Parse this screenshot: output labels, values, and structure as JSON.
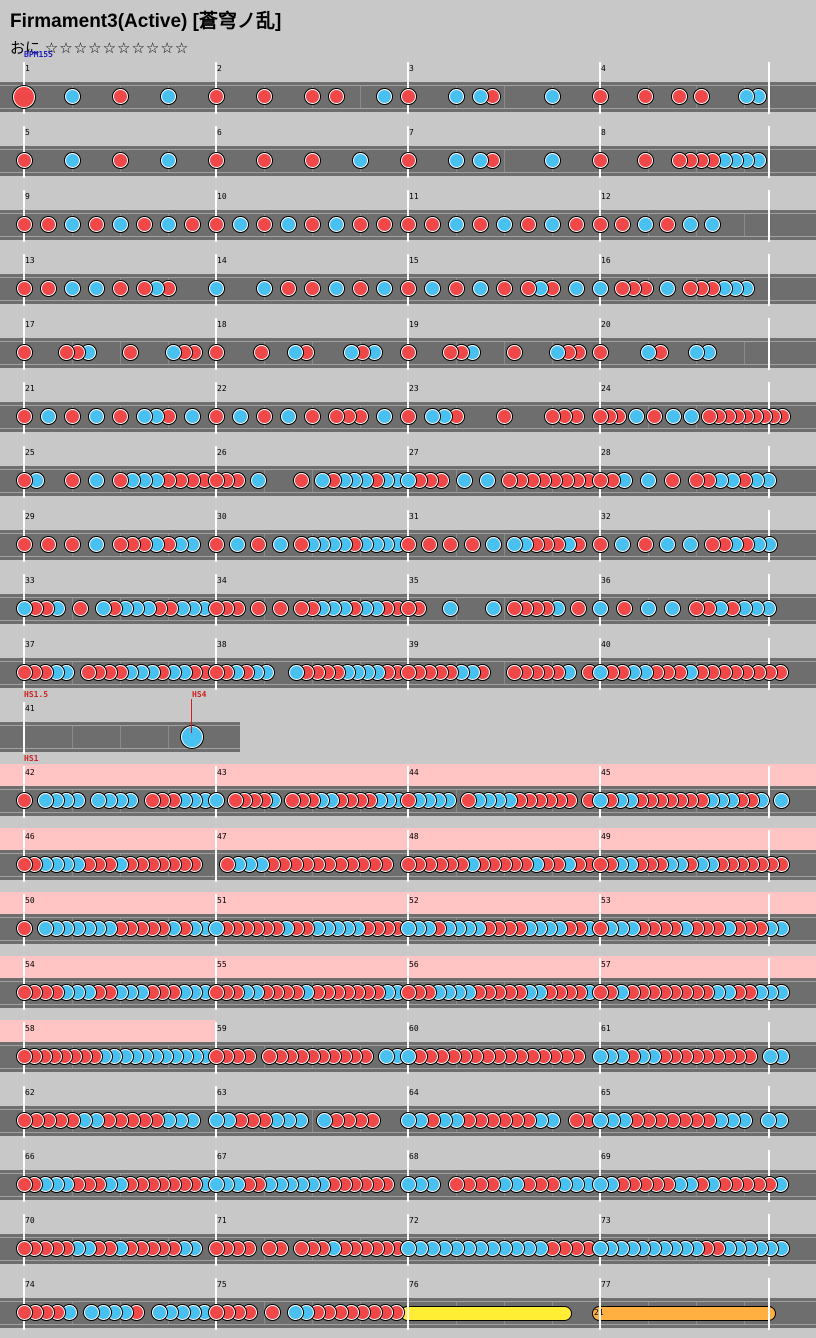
{
  "song": {
    "title": "Firmament3(Active)  [蒼穹ノ乱]",
    "difficulty_label": "おに",
    "stars": "☆☆☆☆☆☆☆☆☆☆"
  },
  "colors": {
    "don": "#f04848",
    "ka": "#48c0f0",
    "lane": "#6e6e6e",
    "gogo": "#ffc4c4",
    "drumroll": "#ffee33",
    "balloon": "#ffb040"
  },
  "rows": [
    {
      "bars": [
        "1",
        "2",
        "3",
        "4"
      ],
      "marks": [
        {
          "text": "BPM155",
          "color": "#2020c0",
          "bar": 0
        }
      ],
      "notes": "B...K...d...K...|d...d...d.d...K.|d...K.kd....K...|d...d..d.d...kK..",
      "big_first": true
    },
    {
      "bars": [
        "5",
        "6",
        "7",
        "8"
      ],
      "notes": "d...K...d...K...|d...d...d...K...|d...K.kd....K...|d...d..ddddkkkk.."
    },
    {
      "bars": [
        "9",
        "10",
        "11",
        "12"
      ],
      "notes": "d.d.k.d.k.d.k.d.|d.k.d.k.d.k.d.d.|d.d.k.d.k.d.k.d.|d.d.k.d.k.k......"
    },
    {
      "bars": [
        "13",
        "14",
        "15",
        "16"
      ],
      "notes": "d.d.k.k.d.dkd...|k...k.d.d.k.d.k.|d.k.d.k.d.dkd.k.|k.ddd.k.dddkkk..."
    },
    {
      "bars": [
        "17",
        "18",
        "19",
        "20"
      ],
      "notes": "d...ddk...d...kdd.|d...d..kd...kdk..|d...ddk...d...kdd.|d...kd..kk......"
    },
    {
      "bars": [
        "21",
        "22",
        "23",
        "24"
      ],
      "notes": "d.k.d.k.d.kkd.k.|d.k.d.k.d.ddd.k.|d.kkd...d...ddd.|ddd.k.d.k.k.ddddddddd"
    },
    {
      "bars": [
        "25",
        "26",
        "27",
        "28"
      ],
      "notes": "dk..d.k.dkkkdddd|ddd.k...d.kdkkkdkk|kddd.k.k.dddddddd|ddk.k.d.ddkkdkk."
    },
    {
      "bars": [
        "29",
        "30",
        "31",
        "32"
      ],
      "notes": "d.d.d.k.dddkdkk.|d.k.d.k.dkkkkdkkkk|d.d.d.d.k.kkdddkd.|d.k.d.k.k.ddkdkk."
    },
    {
      "bars": [
        "33",
        "34",
        "35",
        "36"
      ],
      "notes": "kddk.d.kdkkkddkkk|ddd.d.d.ddkkkdkkdd|dd..k...k.ddddk.d.|k.d.k.k.ddkdkkk."
    },
    {
      "bars": [
        "37",
        "38",
        "39",
        "40"
      ],
      "notes": "dddkk.ddddkkkdkkdd|ddkdkk..kddddkkkkdd|dddddkkd..dddddk.d|kddkkdddkdddddddd"
    },
    {
      "short": true,
      "bars": [
        "41"
      ],
      "marks": [
        {
          "text": "HS1.5",
          "color": "#d02020",
          "bar": 0
        },
        {
          "text": "HS4",
          "color": "#d02020",
          "bar": "hs4"
        }
      ],
      "big_ka": true
    },
    {
      "gogo": true,
      "bars": [
        "42",
        "43",
        "44",
        "45"
      ],
      "marks": [
        {
          "text": "HS1",
          "color": "#d02020",
          "bar": 0
        }
      ],
      "notes": "d.kkkk.kkkk.dddkkk|k.ddddk.dddkkddddkkk|dkkkk.dkkkkdddddd.d|kdkkdddddddkkkddk.k"
    },
    {
      "gogo": true,
      "bars": [
        "46",
        "47",
        "48",
        "49"
      ],
      "notes": "ddkkkkdddkddddddd.|.dkkkddddddddddd.|ddddddkdddddkddkdd|ddkkdddkkdkkddddddd"
    },
    {
      "gogo": true,
      "bars": [
        "50",
        "51",
        "52",
        "53"
      ],
      "notes": "d.kkkkkkkdddddkdkk|kddddddkddkkkkkdddd|kkkdkkkkddddkkkkddk|dkkkddddkdddkdddkk"
    },
    {
      "gogo": true,
      "bars": [
        "54",
        "55",
        "56",
        "57"
      ],
      "notes": "ddddkkkddkkkdddkkk|dddkkddddkdddddddkk|dddkkkkdddddkkddddk|ddkddddddddkkddkkk"
    },
    {
      "gogo": "partial",
      "bars": [
        "58",
        "59",
        "60",
        "61"
      ],
      "notes": "ddddddddkkkkkkkkkkk|dddd.dddddddddd.kk|kddddddddddddddd.|kkkdkkddddddddd.kk"
    },
    {
      "bars": [
        "62",
        "63",
        "64",
        "65"
      ],
      "notes": "dddddkkdddddkkk.|kkdddkkk.kdddd.|kkdkkddddddkk.dd|kkkdddddddkkk.kk"
    },
    {
      "bars": [
        "66",
        "67",
        "68",
        "69"
      ],
      "notes": "ddkkkdddkkdddddddk|kkkddkkkkkkdddddd.|kkk.ddddkkdddkkk|kkdddddkkdkdddddk"
    },
    {
      "bars": [
        "70",
        "71",
        "72",
        "73"
      ],
      "notes": "dddddkkddkdddddkk.|dddd.dd.dddkdddddd|kkkkkkkkkkkkdddd|kkkkkkkkkkddkkkkkk"
    },
    {
      "bars": [
        "74",
        "75",
        "76",
        "77"
      ],
      "notes": "ddddk.kkkkd.kkkkk|dddd.d.kkdddddddd|",
      "last": true,
      "balloon_count": "21"
    }
  ]
}
